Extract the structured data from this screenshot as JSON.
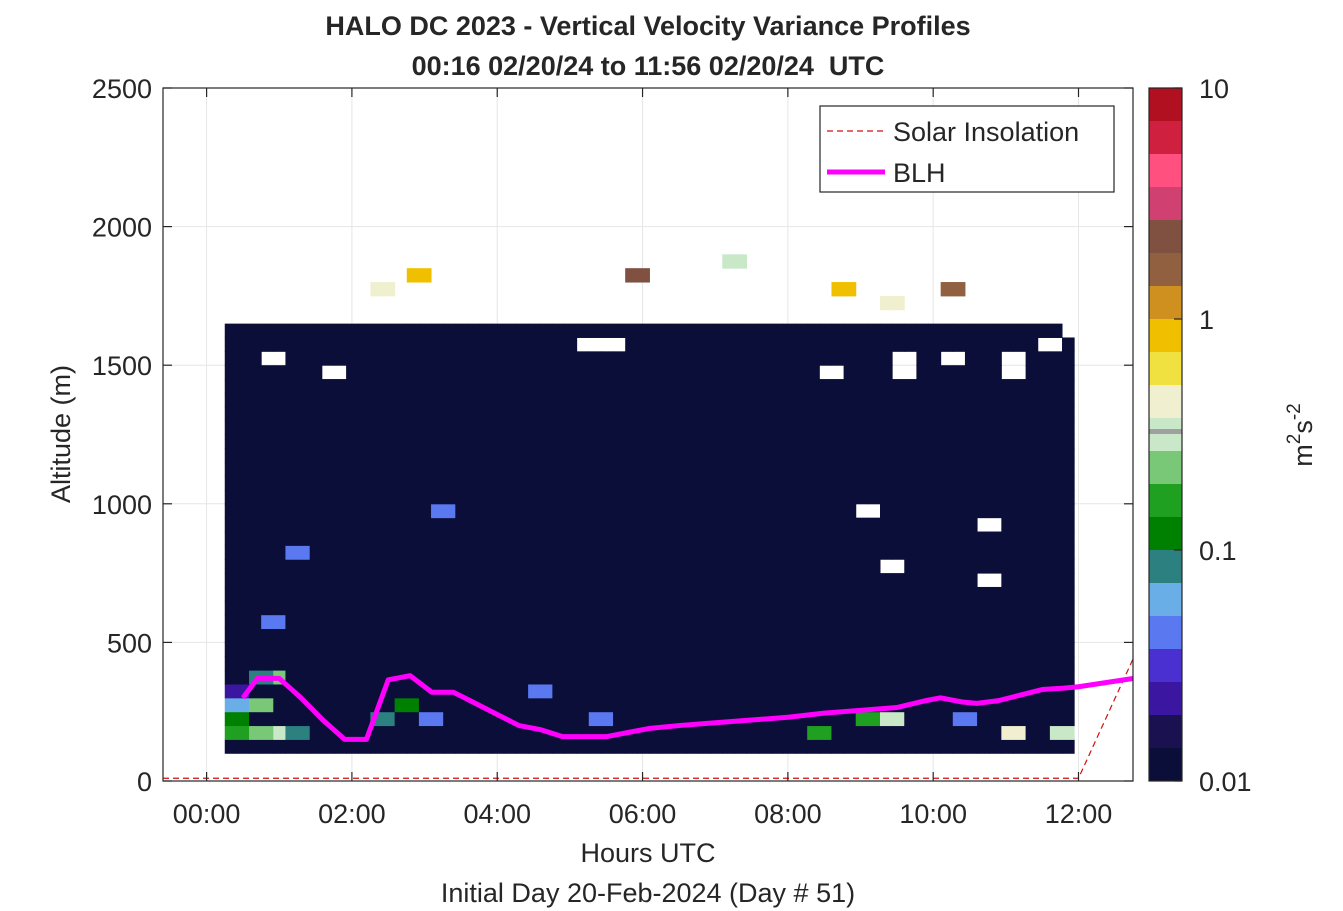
{
  "chart_data": {
    "type": "heatmap",
    "title": "HALO DC 2023 - Vertical Velocity Variance Profiles",
    "subtitle": "00:16 02/20/24 to 11:56 02/20/24  UTC",
    "xlabel": "Hours UTC",
    "xlabel2": "Initial Day 20-Feb-2024 (Day # 51)",
    "ylabel": "Altitude (m)",
    "xlim": [
      -0.6,
      12.75
    ],
    "ylim": [
      0,
      2500
    ],
    "x_ticks": [
      0,
      2,
      4,
      6,
      8,
      10,
      12
    ],
    "x_tick_labels": [
      "00:00",
      "02:00",
      "04:00",
      "06:00",
      "08:00",
      "10:00",
      "12:00"
    ],
    "y_ticks": [
      0,
      500,
      1000,
      1500,
      2000,
      2500
    ],
    "y_tick_labels": [
      "0",
      "500",
      "1000",
      "1500",
      "2000",
      "2500"
    ],
    "grid": true,
    "legend_position": "top-right",
    "colorbar": {
      "label": "m²s⁻²",
      "scale": "log",
      "range": [
        0.01,
        10
      ],
      "ticks": [
        0.01,
        0.1,
        1,
        10
      ],
      "tick_labels": [
        "0.01",
        "0.1",
        "1",
        "10"
      ],
      "colors": [
        "#0c0e3a",
        "#1a1250",
        "#3b16a0",
        "#4a30d0",
        "#5a78f0",
        "#6aaee8",
        "#2d8080",
        "#008000",
        "#20a020",
        "#78c878",
        "#c8e8c8",
        "#f0f0d0",
        "#f0e040",
        "#f0c000",
        "#d09020",
        "#906040",
        "#805040",
        "#d04070",
        "#ff5080",
        "#d02040",
        "#b01020"
      ]
    },
    "heatmap": {
      "x_start_hours": 0.25,
      "x_step_hours": 0.167,
      "altitude_bins_m": [
        100,
        150,
        200,
        250,
        300,
        350,
        400,
        450,
        500,
        550,
        600,
        650,
        700,
        750,
        800,
        850,
        900,
        950,
        1000,
        1050,
        1100,
        1150,
        1200,
        1250,
        1300,
        1350,
        1400,
        1450,
        1500,
        1550,
        1600,
        1650,
        1700,
        1750,
        1800,
        1850
      ],
      "background_value": 0.011,
      "detected_profiles": [
        {
          "x_range_hours": [
            0.25,
            12.0
          ],
          "top_altitude_m": 1650,
          "note": "contiguous coverage from 100 m up to ~1650 m"
        }
      ],
      "notable_values": [
        {
          "x": 0.4,
          "y": 125,
          "v": 0.011
        },
        {
          "x": 0.4,
          "y": 175,
          "v": 0.15
        },
        {
          "x": 0.4,
          "y": 225,
          "v": 0.1
        },
        {
          "x": 0.4,
          "y": 275,
          "v": 0.06
        },
        {
          "x": 0.4,
          "y": 325,
          "v": 0.025
        },
        {
          "x": 0.7,
          "y": 175,
          "v": 0.2
        },
        {
          "x": 0.7,
          "y": 275,
          "v": 0.25
        },
        {
          "x": 0.7,
          "y": 375,
          "v": 0.08
        },
        {
          "x": 1.0,
          "y": 175,
          "v": 0.35
        },
        {
          "x": 1.0,
          "y": 375,
          "v": 0.2
        },
        {
          "x": 1.0,
          "y": 575,
          "v": 0.04
        },
        {
          "x": 1.3,
          "y": 175,
          "v": 0.08
        },
        {
          "x": 1.3,
          "y": 825,
          "v": 0.04
        },
        {
          "x": 2.5,
          "y": 225,
          "v": 0.08
        },
        {
          "x": 2.8,
          "y": 275,
          "v": 0.1
        },
        {
          "x": 3.1,
          "y": 225,
          "v": 0.05
        },
        {
          "x": 3.3,
          "y": 975,
          "v": 0.04
        },
        {
          "x": 4.6,
          "y": 325,
          "v": 0.04
        },
        {
          "x": 5.5,
          "y": 225,
          "v": 0.04
        },
        {
          "x": 8.5,
          "y": 175,
          "v": 0.15
        },
        {
          "x": 9.1,
          "y": 225,
          "v": 0.15
        },
        {
          "x": 9.5,
          "y": 225,
          "v": 0.3
        },
        {
          "x": 10.5,
          "y": 225,
          "v": 0.05
        },
        {
          "x": 11.1,
          "y": 175,
          "v": 0.4
        },
        {
          "x": 11.7,
          "y": 175,
          "v": 0.3
        },
        {
          "x": 2.4,
          "y": 1775,
          "v": 0.4
        },
        {
          "x": 2.9,
          "y": 1825,
          "v": 0.8
        },
        {
          "x": 6.0,
          "y": 1825,
          "v": 2.0
        },
        {
          "x": 7.2,
          "y": 1875,
          "v": 0.3
        },
        {
          "x": 8.8,
          "y": 1775,
          "v": 0.8
        },
        {
          "x": 9.5,
          "y": 1725,
          "v": 0.5
        },
        {
          "x": 10.3,
          "y": 1775,
          "v": 1.5
        }
      ],
      "gaps_m": [
        {
          "x": [
            9.0,
            9.25
          ],
          "y": [
            950,
            1000
          ]
        },
        {
          "x": [
            9.3,
            9.6
          ],
          "y": [
            750,
            800
          ]
        },
        {
          "x": [
            10.6,
            10.9
          ],
          "y": [
            900,
            950
          ]
        },
        {
          "x": [
            10.6,
            10.9
          ],
          "y": [
            700,
            750
          ]
        },
        {
          "x": [
            0.75,
            1.05
          ],
          "y": [
            1500,
            1550
          ]
        },
        {
          "x": [
            1.6,
            1.9
          ],
          "y": [
            1450,
            1500
          ]
        },
        {
          "x": [
            5.1,
            5.7
          ],
          "y": [
            1550,
            1600
          ]
        },
        {
          "x": [
            8.4,
            8.7
          ],
          "y": [
            1450,
            1500
          ]
        },
        {
          "x": [
            9.5,
            9.8
          ],
          "y": [
            1450,
            1550
          ]
        },
        {
          "x": [
            10.1,
            10.4
          ],
          "y": [
            1500,
            1550
          ]
        },
        {
          "x": [
            10.9,
            11.2
          ],
          "y": [
            1450,
            1550
          ]
        },
        {
          "x": [
            11.4,
            11.7
          ],
          "y": [
            1550,
            1600
          ]
        },
        {
          "x": [
            11.8,
            12.0
          ],
          "y": [
            1600,
            1650
          ]
        }
      ]
    },
    "series": [
      {
        "name": "Solar Insolation",
        "style": "dashed",
        "color": "#d01010",
        "x": [
          -0.6,
          12.0,
          12.75
        ],
        "y": [
          10,
          10,
          440
        ]
      },
      {
        "name": "BLH",
        "style": "solid",
        "color": "#ff00ff",
        "x": [
          0.5,
          0.7,
          1.0,
          1.3,
          1.6,
          1.9,
          2.2,
          2.5,
          2.8,
          3.1,
          3.4,
          3.7,
          4.0,
          4.3,
          4.6,
          4.9,
          5.2,
          5.5,
          5.8,
          6.1,
          6.5,
          7.0,
          7.5,
          8.0,
          8.5,
          9.0,
          9.5,
          9.9,
          10.1,
          10.4,
          10.6,
          10.9,
          11.2,
          11.5,
          11.8,
          12.0,
          12.75
        ],
        "y": [
          300,
          370,
          370,
          300,
          220,
          150,
          150,
          365,
          380,
          320,
          320,
          280,
          240,
          200,
          185,
          160,
          160,
          160,
          175,
          190,
          200,
          210,
          220,
          230,
          245,
          255,
          265,
          290,
          300,
          285,
          280,
          290,
          310,
          330,
          335,
          340,
          370
        ]
      }
    ]
  }
}
